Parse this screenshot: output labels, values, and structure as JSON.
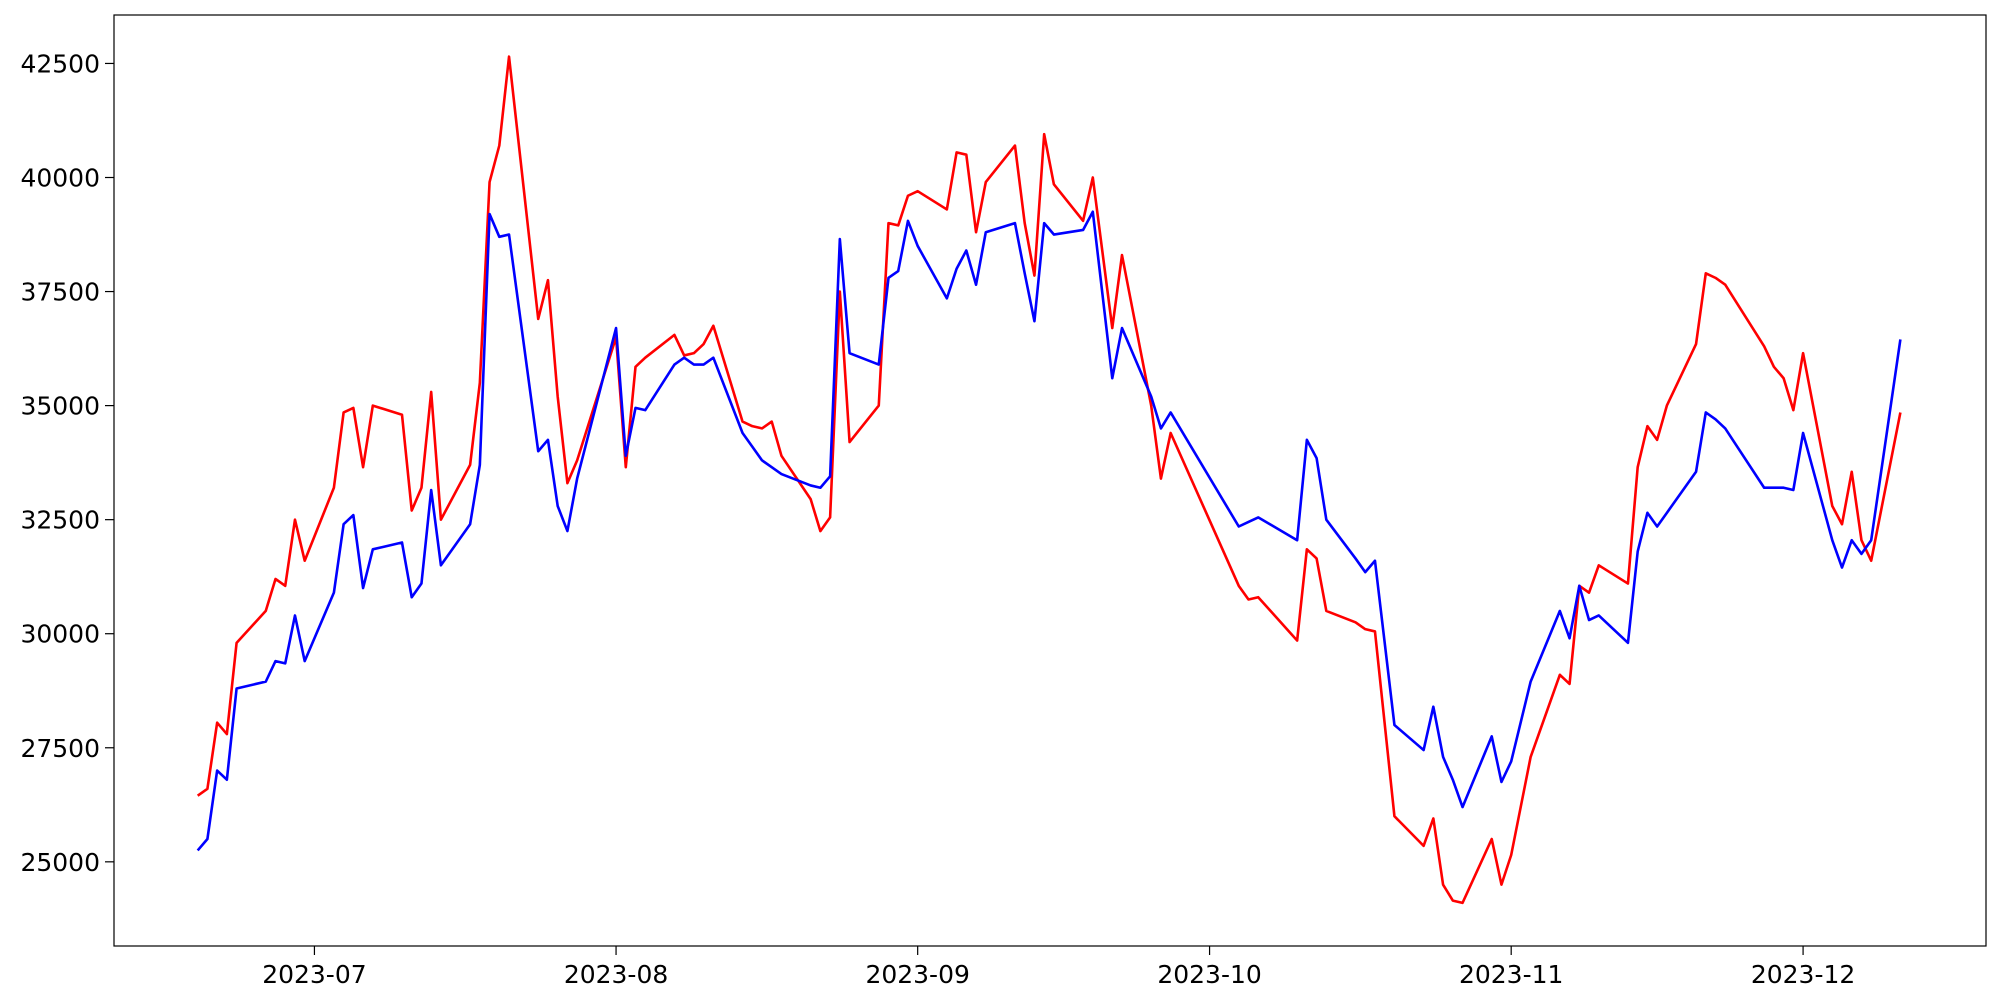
{
  "chart_data": {
    "type": "line",
    "x": [
      19527,
      19528,
      19529,
      19530,
      19531,
      19534,
      19535,
      19536,
      19537,
      19538,
      19541,
      19542,
      19543,
      19544,
      19545,
      19548,
      19549,
      19550,
      19551,
      19552,
      19555,
      19556,
      19557,
      19558,
      19559,
      19562,
      19563,
      19564,
      19565,
      19566,
      19570,
      19571,
      19572,
      19573,
      19576,
      19577,
      19578,
      19579,
      19580,
      19583,
      19584,
      19585,
      19586,
      19587,
      19590,
      19591,
      19592,
      19593,
      19594,
      19597,
      19598,
      19599,
      19600,
      19601,
      19604,
      19605,
      19606,
      19607,
      19608,
      19611,
      19612,
      19613,
      19614,
      19615,
      19618,
      19619,
      19621,
      19622,
      19625,
      19626,
      19627,
      19634,
      19635,
      19636,
      19640,
      19641,
      19642,
      19643,
      19646,
      19647,
      19648,
      19650,
      19653,
      19654,
      19655,
      19656,
      19657,
      19660,
      19661,
      19662,
      19664,
      19667,
      19668,
      19669,
      19670,
      19671,
      19674,
      19675,
      19676,
      19677,
      19678,
      19681,
      19682,
      19683,
      19684,
      19688,
      19689,
      19690,
      19691,
      19692,
      19695,
      19696,
      19697,
      19698,
      19699,
      19702
    ],
    "series": [
      {
        "color": "#ff0000",
        "values": [
          26450,
          26600,
          28050,
          27800,
          29800,
          30500,
          31200,
          31050,
          32500,
          31600,
          33200,
          34850,
          34950,
          33650,
          35000,
          34800,
          32700,
          33200,
          35300,
          32500,
          33700,
          35500,
          39900,
          40700,
          42650,
          36900,
          37750,
          35200,
          33300,
          33800,
          36500,
          33650,
          35850,
          36050,
          36550,
          36100,
          36150,
          36350,
          36750,
          34650,
          34550,
          34500,
          34650,
          33900,
          32950,
          32250,
          32550,
          37500,
          34200,
          35000,
          39000,
          38950,
          39600,
          39700,
          39300,
          40550,
          40500,
          38800,
          39900,
          40700,
          39000,
          37850,
          40950,
          39850,
          39050,
          40000,
          36700,
          38300,
          35000,
          33400,
          34400,
          31050,
          30750,
          30800,
          29850,
          31850,
          31650,
          30500,
          30250,
          30100,
          30050,
          26000,
          25350,
          25950,
          24500,
          24150,
          24100,
          25500,
          24500,
          25150,
          27300,
          29100,
          28900,
          31050,
          30900,
          31500,
          31100,
          33650,
          34550,
          34250,
          35000,
          36350,
          37900,
          37800,
          37650,
          36300,
          35850,
          35600,
          34900,
          36150,
          32800,
          32400,
          33550,
          32050,
          31600,
          34850
        ]
      },
      {
        "color": "#0000ff",
        "values": [
          25250,
          25500,
          27000,
          26800,
          28800,
          28950,
          29400,
          29350,
          30400,
          29400,
          30900,
          32400,
          32600,
          31000,
          31850,
          32000,
          30800,
          31100,
          33150,
          31500,
          32400,
          33700,
          39200,
          38700,
          38750,
          34000,
          34250,
          32800,
          32250,
          33400,
          36700,
          33900,
          34950,
          34900,
          35900,
          36050,
          35900,
          35900,
          36050,
          34400,
          34100,
          33800,
          33650,
          33500,
          33250,
          33200,
          33450,
          38650,
          36150,
          35900,
          37800,
          37950,
          39050,
          38500,
          37350,
          38000,
          38400,
          37650,
          38800,
          39000,
          37900,
          36850,
          39000,
          38750,
          38850,
          39250,
          35600,
          36700,
          35200,
          34500,
          34850,
          32350,
          32450,
          32550,
          32050,
          34250,
          33850,
          32500,
          31650,
          31350,
          31600,
          28000,
          27450,
          28400,
          27300,
          26800,
          26200,
          27750,
          26750,
          27200,
          28950,
          30500,
          29900,
          31050,
          30300,
          30400,
          29800,
          31800,
          32650,
          32350,
          32650,
          33550,
          34850,
          34700,
          34500,
          33200,
          33200,
          33200,
          33150,
          34400,
          32050,
          31450,
          32050,
          31750,
          32050,
          36450
        ]
      }
    ],
    "xlim": [
      19518.4,
      19710.8
    ],
    "xticks": [
      {
        "value": 19539,
        "label": "2023-07"
      },
      {
        "value": 19570,
        "label": "2023-08"
      },
      {
        "value": 19601,
        "label": "2023-09"
      },
      {
        "value": 19631,
        "label": "2023-10"
      },
      {
        "value": 19662,
        "label": "2023-11"
      },
      {
        "value": 19692,
        "label": "2023-12"
      }
    ],
    "ylim": [
      23155,
      43562
    ],
    "yticks": [
      25000,
      27500,
      30000,
      32500,
      35000,
      37500,
      40000,
      42500
    ]
  }
}
